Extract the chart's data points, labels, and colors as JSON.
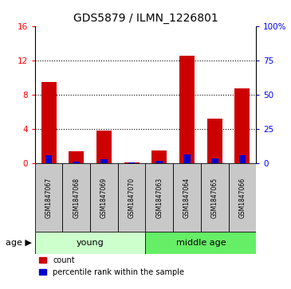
{
  "title": "GDS5879 / ILMN_1226801",
  "samples": [
    "GSM1847067",
    "GSM1847068",
    "GSM1847069",
    "GSM1847070",
    "GSM1847063",
    "GSM1847064",
    "GSM1847065",
    "GSM1847066"
  ],
  "counts": [
    9.5,
    1.4,
    3.8,
    0.05,
    1.5,
    12.5,
    5.2,
    8.7
  ],
  "percentiles": [
    5.5,
    1.1,
    3.1,
    0.35,
    1.5,
    6.2,
    3.6,
    5.5
  ],
  "groups": [
    {
      "label": "young",
      "start": 0,
      "end": 4,
      "color": "#CCFFCC"
    },
    {
      "label": "middle age",
      "start": 4,
      "end": 8,
      "color": "#66EE66"
    }
  ],
  "ylim_left": [
    0,
    16
  ],
  "ylim_right": [
    0,
    100
  ],
  "yticks_left": [
    0,
    4,
    8,
    12,
    16
  ],
  "yticks_right": [
    0,
    25,
    50,
    75,
    100
  ],
  "bar_color_red": "#CC0000",
  "bar_color_blue": "#0000CC",
  "bar_width": 0.55,
  "blue_bar_width": 0.25,
  "bg_color": "#FFFFFF",
  "sample_box_color": "#C8C8C8",
  "legend_count": "count",
  "legend_percentile": "percentile rank within the sample",
  "title_fontsize": 10,
  "tick_fontsize": 7.5,
  "sample_fontsize": 5.5,
  "age_fontsize": 8,
  "legend_fontsize": 7
}
